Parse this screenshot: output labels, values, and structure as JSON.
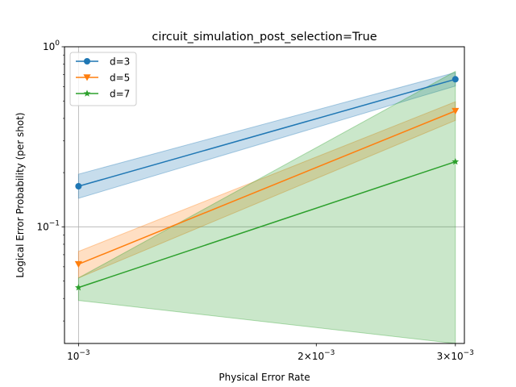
{
  "chart_data": {
    "type": "line",
    "title": "circuit_simulation_post_selection=True",
    "xlabel": "Physical Error Rate",
    "ylabel": "Logical Error Probability (per shot)",
    "xscale": "log",
    "yscale": "log",
    "xlim": [
      0.00096,
      0.00308
    ],
    "ylim": [
      0.0225,
      1.0
    ],
    "grid": "major ticks only",
    "legend_position": "top-left",
    "x_ticks": [
      {
        "value": 0.001,
        "base": "10",
        "exp": "−3",
        "coef": ""
      },
      {
        "value": 0.002,
        "base": "10",
        "exp": "−3",
        "coef": "2×"
      },
      {
        "value": 0.003,
        "base": "10",
        "exp": "−3",
        "coef": "3×"
      }
    ],
    "y_ticks": [
      {
        "value": 0.1,
        "base": "10",
        "exp": "−1"
      },
      {
        "value": 1.0,
        "base": "10",
        "exp": "0"
      }
    ],
    "series": [
      {
        "name": "d=3",
        "color": "#1f77b4",
        "marker": "circle",
        "x": [
          0.001,
          0.003
        ],
        "y": [
          0.168,
          0.66
        ],
        "lower": [
          0.144,
          0.605
        ],
        "upper": [
          0.196,
          0.72
        ]
      },
      {
        "name": "d=5",
        "color": "#ff7f0e",
        "marker": "triangle-down",
        "x": [
          0.001,
          0.003
        ],
        "y": [
          0.062,
          0.44
        ],
        "lower": [
          0.052,
          0.39
        ],
        "upper": [
          0.073,
          0.495
        ]
      },
      {
        "name": "d=7",
        "color": "#2ca02c",
        "marker": "star",
        "x": [
          0.001,
          0.003
        ],
        "y": [
          0.046,
          0.23
        ],
        "lower": [
          0.039,
          0.0225
        ],
        "upper": [
          0.052,
          0.73
        ]
      }
    ]
  }
}
